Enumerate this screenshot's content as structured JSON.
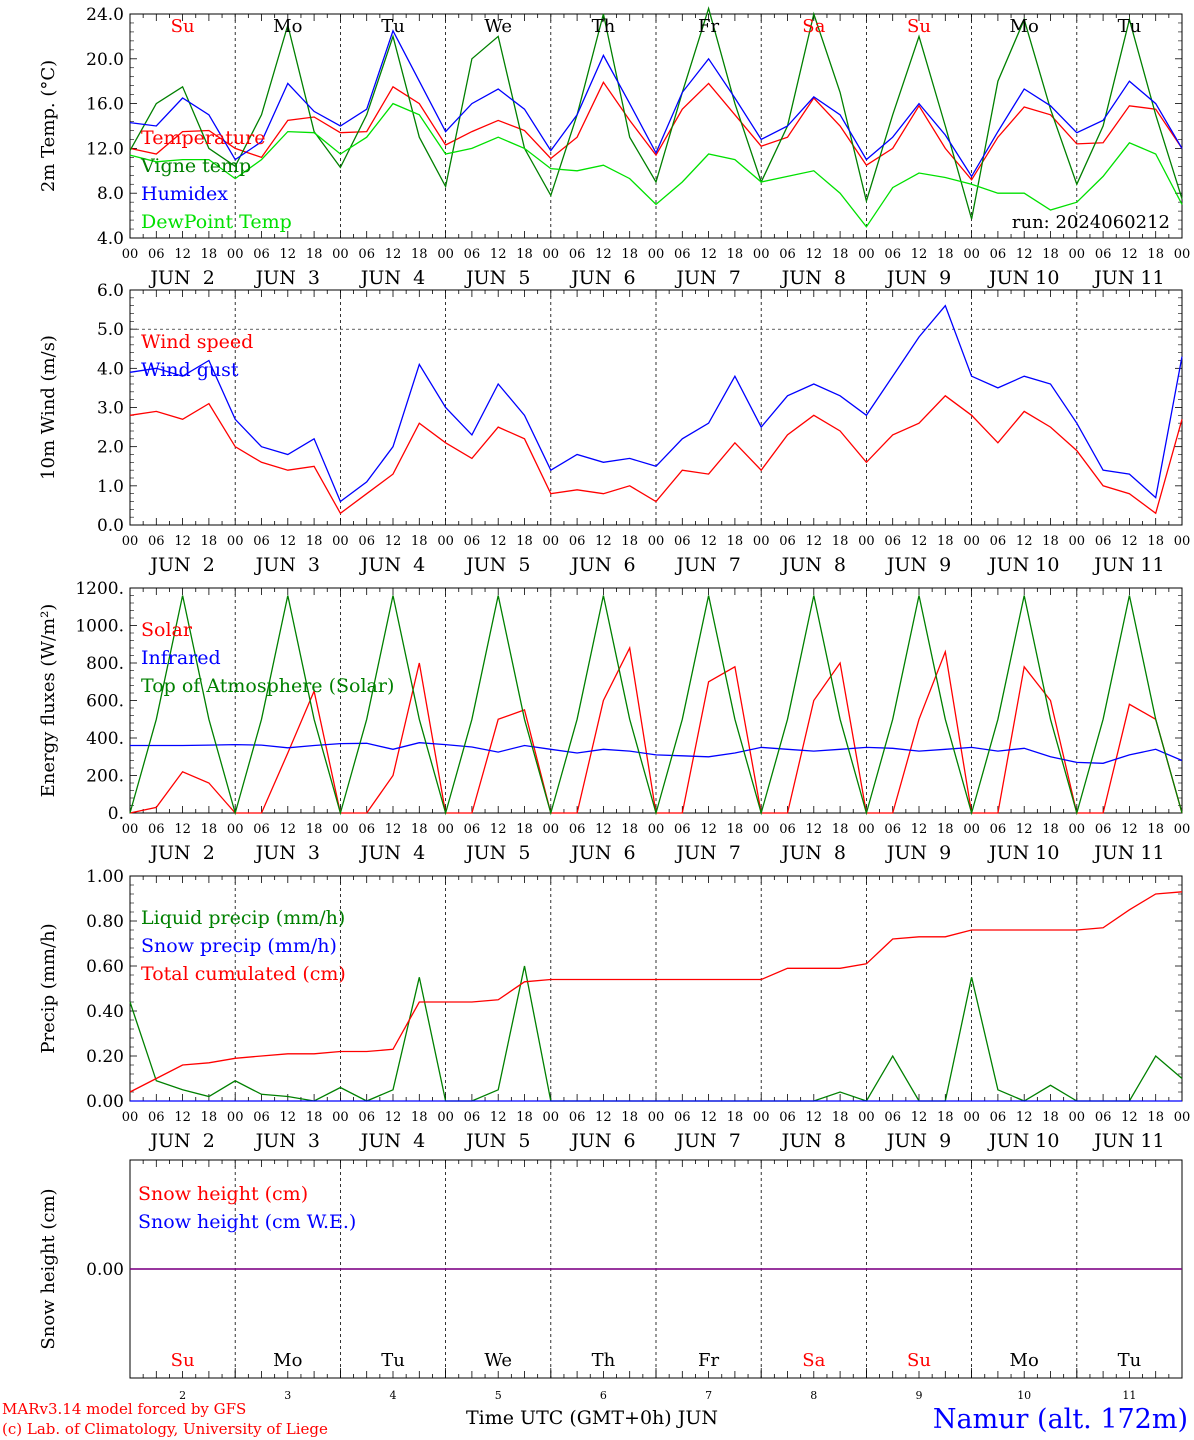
{
  "chart_data": {
    "type": "line",
    "station": "Namur (alt. 172m)",
    "credits": [
      "MARv3.14 model forced by GFS",
      "(c) Lab. of Climatology, University of Liege"
    ],
    "run_label": "run: 2024060212",
    "x_axis_title": "Time UTC (GMT+0h) JUN",
    "hour_ticks": [
      "00",
      "06",
      "12",
      "18"
    ],
    "days": [
      {
        "date": "JUN  2",
        "num": "2",
        "dow": "Su",
        "weekend": true
      },
      {
        "date": "JUN  3",
        "num": "3",
        "dow": "Mo",
        "weekend": false
      },
      {
        "date": "JUN  4",
        "num": "4",
        "dow": "Tu",
        "weekend": false
      },
      {
        "date": "JUN  5",
        "num": "5",
        "dow": "We",
        "weekend": false
      },
      {
        "date": "JUN  6",
        "num": "6",
        "dow": "Th",
        "weekend": false
      },
      {
        "date": "JUN  7",
        "num": "7",
        "dow": "Fr",
        "weekend": false
      },
      {
        "date": "JUN  8",
        "num": "8",
        "dow": "Sa",
        "weekend": true
      },
      {
        "date": "JUN  9",
        "num": "9",
        "dow": "Su",
        "weekend": true
      },
      {
        "date": "JUN 10",
        "num": "10",
        "dow": "Mo",
        "weekend": false
      },
      {
        "date": "JUN 11",
        "num": "11",
        "dow": "Tu",
        "weekend": false
      }
    ],
    "colors": {
      "red": "#ff0000",
      "green": "#008000",
      "blue": "#0000ff",
      "lightgreen": "#00e000",
      "purple": "#800080",
      "weekend": "#ff0000",
      "weekday": "#000000",
      "station": "#0000ff"
    },
    "panels": [
      {
        "id": "temperature",
        "ylabel": "2m Temp. (°C)",
        "ylim": [
          4,
          24
        ],
        "yticks": [
          "4.0",
          "8.0",
          "12.0",
          "16.0",
          "20.0",
          "24.0"
        ],
        "ytick_values": [
          4,
          8,
          12,
          16,
          20,
          24
        ],
        "ref_lines": [],
        "show_dow": true,
        "x_hours": [
          0,
          6,
          12,
          18,
          24,
          30,
          36,
          42,
          48,
          54,
          60,
          66,
          72,
          78,
          84,
          90,
          96,
          102,
          108,
          114,
          120,
          126,
          132,
          138,
          144,
          150,
          156,
          162,
          168,
          174,
          180,
          186,
          192,
          198,
          204,
          210,
          216,
          222,
          228,
          234,
          240
        ],
        "series": [
          {
            "name": "Temperature",
            "color": "#ff0000",
            "values": [
              12.0,
              11.5,
              13.5,
              13.6,
              12.0,
              11.2,
              14.5,
              14.8,
              13.4,
              13.5,
              17.5,
              16.0,
              12.3,
              13.5,
              14.5,
              13.6,
              11.1,
              13.0,
              17.9,
              14.5,
              11.4,
              15.5,
              17.8,
              15.0,
              12.2,
              13.0,
              16.5,
              14.0,
              10.5,
              12.0,
              15.8,
              12.0,
              9.2,
              13.0,
              15.7,
              15.0,
              12.4,
              12.5,
              15.8,
              15.5,
              12.0
            ]
          },
          {
            "name": "Vigne temp",
            "color": "#008000",
            "values": [
              11.8,
              16.0,
              17.5,
              12.0,
              10.4,
              15.0,
              23.0,
              13.5,
              10.3,
              15.0,
              22.0,
              13.0,
              8.6,
              20.0,
              22.0,
              12.0,
              7.8,
              15.0,
              24.0,
              13.0,
              9.0,
              17.0,
              24.5,
              16.0,
              9.0,
              14.0,
              24.0,
              17.0,
              7.3,
              15.0,
              22.0,
              14.0,
              5.7,
              18.0,
              23.5,
              15.5,
              8.8,
              14.0,
              23.5,
              15.0,
              7.5
            ]
          },
          {
            "name": "Humidex",
            "color": "#0000ff",
            "values": [
              14.3,
              14.0,
              16.5,
              15.0,
              11.0,
              12.6,
              17.8,
              15.3,
              14.0,
              15.5,
              22.5,
              18.0,
              13.5,
              16.0,
              17.3,
              15.5,
              11.8,
              15.0,
              20.3,
              16.0,
              11.6,
              17.0,
              20.0,
              16.5,
              12.8,
              14.0,
              16.6,
              15.0,
              11.0,
              13.0,
              16.0,
              13.2,
              9.5,
              13.5,
              17.3,
              15.8,
              13.4,
              14.5,
              18.0,
              16.0,
              12.0
            ]
          },
          {
            "name": "DewPoint Temp",
            "color": "#00e000",
            "values": [
              11.4,
              10.8,
              11.0,
              11.0,
              9.3,
              11.0,
              13.5,
              13.4,
              11.5,
              13.0,
              16.0,
              15.0,
              11.5,
              12.0,
              13.0,
              12.0,
              10.2,
              10.0,
              10.5,
              9.3,
              7.0,
              9.0,
              11.5,
              11.0,
              9.0,
              9.5,
              10.0,
              8.0,
              5.0,
              8.5,
              9.8,
              9.4,
              8.8,
              8.0,
              8.0,
              6.5,
              7.2,
              9.5,
              12.5,
              11.5,
              7.0
            ]
          }
        ]
      },
      {
        "id": "wind",
        "ylabel": "10m Wind (m/s)",
        "ylim": [
          0,
          6
        ],
        "yticks": [
          "0.0",
          "1.0",
          "2.0",
          "3.0",
          "4.0",
          "5.0",
          "6.0"
        ],
        "ytick_values": [
          0,
          1,
          2,
          3,
          4,
          5,
          6
        ],
        "ref_lines": [
          5
        ],
        "show_dow": false,
        "x_hours": [
          0,
          6,
          12,
          18,
          24,
          30,
          36,
          42,
          48,
          54,
          60,
          66,
          72,
          78,
          84,
          90,
          96,
          102,
          108,
          114,
          120,
          126,
          132,
          138,
          144,
          150,
          156,
          162,
          168,
          174,
          180,
          186,
          192,
          198,
          204,
          210,
          216,
          222,
          228,
          234,
          240
        ],
        "series": [
          {
            "name": "Wind speed",
            "color": "#ff0000",
            "values": [
              2.8,
              2.9,
              2.7,
              3.1,
              2.0,
              1.6,
              1.4,
              1.5,
              0.3,
              0.8,
              1.3,
              2.6,
              2.1,
              1.7,
              2.5,
              2.2,
              0.8,
              0.9,
              0.8,
              1.0,
              0.6,
              1.4,
              1.3,
              2.1,
              1.4,
              2.3,
              2.8,
              2.4,
              1.6,
              2.3,
              2.6,
              3.3,
              2.8,
              2.1,
              2.9,
              2.5,
              1.9,
              1.0,
              0.8,
              0.3,
              2.7
            ]
          },
          {
            "name": "Wind gust",
            "color": "#0000ff",
            "values": [
              3.9,
              4.0,
              3.8,
              4.2,
              2.7,
              2.0,
              1.8,
              2.2,
              0.6,
              1.1,
              2.0,
              4.1,
              3.0,
              2.3,
              3.6,
              2.8,
              1.4,
              1.8,
              1.6,
              1.7,
              1.5,
              2.2,
              2.6,
              3.8,
              2.5,
              3.3,
              3.6,
              3.3,
              2.8,
              3.8,
              4.8,
              5.6,
              3.8,
              3.5,
              3.8,
              3.6,
              2.6,
              1.4,
              1.3,
              0.7,
              4.3
            ]
          }
        ]
      },
      {
        "id": "energy",
        "ylabel": "Energy fluxes (W/m²)",
        "ylim": [
          0,
          1200
        ],
        "yticks": [
          "0.",
          "200.",
          "400.",
          "600.",
          "800.",
          "1000.",
          "1200."
        ],
        "ytick_values": [
          0,
          200,
          400,
          600,
          800,
          1000,
          1200
        ],
        "ref_lines": [],
        "show_dow": false,
        "x_hours": [
          0,
          6,
          12,
          18,
          24,
          30,
          36,
          42,
          48,
          54,
          60,
          66,
          72,
          78,
          84,
          90,
          96,
          102,
          108,
          114,
          120,
          126,
          132,
          138,
          144,
          150,
          156,
          162,
          168,
          174,
          180,
          186,
          192,
          198,
          204,
          210,
          216,
          222,
          228,
          234,
          240
        ],
        "series": [
          {
            "name": "Solar",
            "color": "#ff0000",
            "values": [
              0,
              30,
              220,
              160,
              0,
              0,
              320,
              650,
              0,
              0,
              200,
              800,
              0,
              0,
              500,
              550,
              0,
              0,
              600,
              880,
              0,
              0,
              700,
              780,
              0,
              0,
              600,
              800,
              0,
              0,
              500,
              860,
              0,
              0,
              780,
              600,
              0,
              0,
              580,
              500,
              0
            ]
          },
          {
            "name": "Infrared",
            "color": "#0000ff",
            "values": [
              360,
              360,
              360,
              362,
              365,
              362,
              348,
              360,
              370,
              372,
              340,
              375,
              365,
              352,
              325,
              360,
              340,
              320,
              340,
              330,
              310,
              305,
              300,
              320,
              350,
              340,
              330,
              340,
              350,
              345,
              330,
              340,
              350,
              330,
              345,
              300,
              270,
              265,
              310,
              340,
              280
            ]
          },
          {
            "name": "Top of Atmosphere (Solar)",
            "color": "#008000",
            "values": [
              0,
              500,
              1160,
              500,
              0,
              500,
              1160,
              500,
              0,
              500,
              1160,
              500,
              0,
              500,
              1160,
              500,
              0,
              500,
              1160,
              500,
              0,
              500,
              1160,
              500,
              0,
              500,
              1160,
              500,
              0,
              500,
              1160,
              500,
              0,
              500,
              1160,
              500,
              0,
              500,
              1160,
              500,
              0
            ]
          }
        ]
      },
      {
        "id": "precip",
        "ylabel": "Precip (mm/h)",
        "ylim": [
          0,
          1
        ],
        "yticks": [
          "0.00",
          "0.20",
          "0.40",
          "0.60",
          "0.80",
          "1.00"
        ],
        "ytick_values": [
          0,
          0.2,
          0.4,
          0.6,
          0.8,
          1.0
        ],
        "ref_lines": [],
        "show_dow": false,
        "x_hours": [
          0,
          6,
          12,
          18,
          24,
          30,
          36,
          42,
          48,
          54,
          60,
          66,
          72,
          78,
          84,
          90,
          96,
          102,
          108,
          114,
          120,
          126,
          132,
          138,
          144,
          150,
          156,
          162,
          168,
          174,
          180,
          186,
          192,
          198,
          204,
          210,
          216,
          222,
          228,
          234,
          240
        ],
        "series": [
          {
            "name": "Liquid precip (mm/h)",
            "color": "#008000",
            "values": [
              0.44,
              0.09,
              0.05,
              0.02,
              0.09,
              0.03,
              0.02,
              0.0,
              0.06,
              0.0,
              0.05,
              0.55,
              0.0,
              0.0,
              0.05,
              0.6,
              0.0,
              0.0,
              0.0,
              0.0,
              0.0,
              0.0,
              0.0,
              0.0,
              0.0,
              0.0,
              0.0,
              0.04,
              0.0,
              0.2,
              0.0,
              0.0,
              0.55,
              0.05,
              0.0,
              0.07,
              0.0,
              0.0,
              0.0,
              0.2,
              0.1
            ]
          },
          {
            "name": "Snow precip (mm/h)",
            "color": "#0000ff",
            "values": [
              0,
              0,
              0,
              0,
              0,
              0,
              0,
              0,
              0,
              0,
              0,
              0,
              0,
              0,
              0,
              0,
              0,
              0,
              0,
              0,
              0,
              0,
              0,
              0,
              0,
              0,
              0,
              0,
              0,
              0,
              0,
              0,
              0,
              0,
              0,
              0,
              0,
              0,
              0,
              0,
              0
            ]
          },
          {
            "name": "Total cumulated (cm)",
            "color": "#ff0000",
            "values": [
              0.04,
              0.1,
              0.16,
              0.17,
              0.19,
              0.2,
              0.21,
              0.21,
              0.22,
              0.22,
              0.23,
              0.44,
              0.44,
              0.44,
              0.45,
              0.53,
              0.54,
              0.54,
              0.54,
              0.54,
              0.54,
              0.54,
              0.54,
              0.54,
              0.54,
              0.59,
              0.59,
              0.59,
              0.61,
              0.72,
              0.73,
              0.73,
              0.76,
              0.76,
              0.76,
              0.76,
              0.76,
              0.77,
              0.85,
              0.92,
              0.93
            ]
          }
        ]
      },
      {
        "id": "snow",
        "ylabel": "Snow height (cm)",
        "ylim": [
          -1,
          1
        ],
        "yticks": [
          "0.00"
        ],
        "ytick_values": [
          0
        ],
        "ref_lines": [],
        "show_dow": false,
        "x_hours": [
          0,
          240
        ],
        "series": [
          {
            "name": "Snow height (cm)",
            "color": "#ff0000",
            "values": [
              0,
              0
            ]
          },
          {
            "name": "Snow height (cm W.E.)",
            "color": "#0000ff",
            "values": [
              0,
              0
            ]
          },
          {
            "name": "",
            "color": "#800080",
            "values": [
              0,
              0
            ]
          }
        ]
      }
    ]
  }
}
